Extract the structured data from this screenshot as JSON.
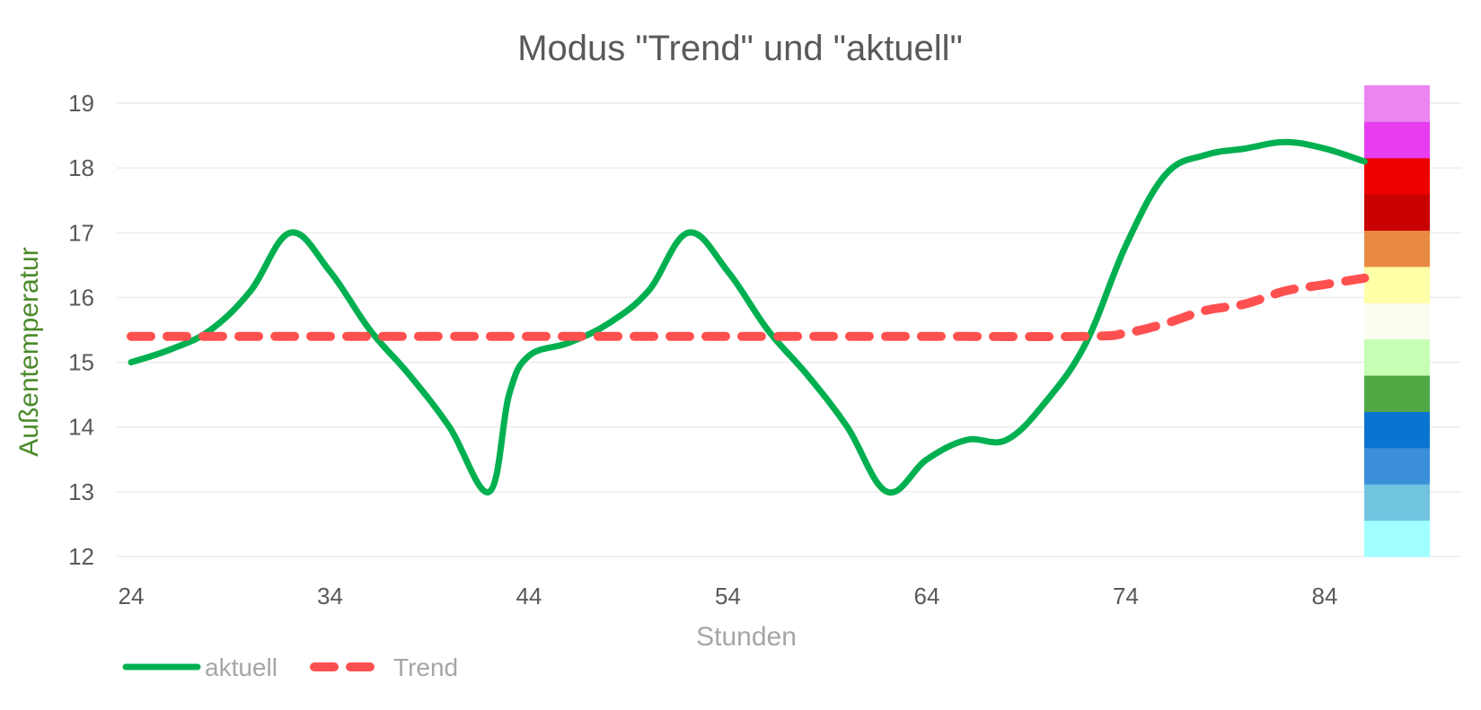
{
  "chart_data": {
    "type": "line",
    "title": "Modus \"Trend\" und \"aktuell\"",
    "xlabel": "Stunden",
    "ylabel": "Außentemperatur",
    "xlim": [
      24,
      88
    ],
    "ylim": [
      12,
      19
    ],
    "x_ticks": [
      24,
      34,
      44,
      54,
      64,
      74,
      84
    ],
    "y_ticks": [
      12,
      13,
      14,
      15,
      16,
      17,
      18,
      19
    ],
    "grid": true,
    "legend_position": "bottom-left",
    "series": [
      {
        "name": "aktuell",
        "color": "#00b050",
        "style": "solid",
        "x": [
          24,
          26,
          28,
          30,
          32,
          34,
          36,
          38,
          40,
          42,
          43,
          44,
          46,
          48,
          50,
          52,
          54,
          56,
          58,
          60,
          62,
          64,
          66,
          68,
          70,
          72,
          74,
          76,
          78,
          80,
          82,
          84,
          86
        ],
        "y": [
          15.0,
          15.2,
          15.5,
          16.1,
          17.0,
          16.4,
          15.5,
          14.8,
          14.0,
          13.0,
          14.5,
          15.1,
          15.3,
          15.6,
          16.1,
          17.0,
          16.4,
          15.5,
          14.8,
          14.0,
          13.0,
          13.5,
          13.8,
          13.8,
          14.4,
          15.3,
          16.8,
          17.9,
          18.2,
          18.3,
          18.4,
          18.3,
          18.1
        ]
      },
      {
        "name": "Trend",
        "color": "#ff5050",
        "style": "dashed",
        "x": [
          24,
          32,
          40,
          48,
          56,
          64,
          72,
          74,
          76,
          78,
          80,
          82,
          84,
          86
        ],
        "y": [
          15.4,
          15.4,
          15.4,
          15.4,
          15.4,
          15.4,
          15.4,
          15.45,
          15.6,
          15.8,
          15.9,
          16.1,
          16.2,
          16.3
        ]
      }
    ],
    "color_scale": {
      "colors": [
        "#a0ffff",
        "#70c4e0",
        "#3b8fd8",
        "#0b74d1",
        "#4fa843",
        "#c6ffb3",
        "#fbfdee",
        "#ffffa8",
        "#e98a42",
        "#c90000",
        "#ed0000",
        "#e83cf0",
        "#eb86f1"
      ]
    }
  }
}
